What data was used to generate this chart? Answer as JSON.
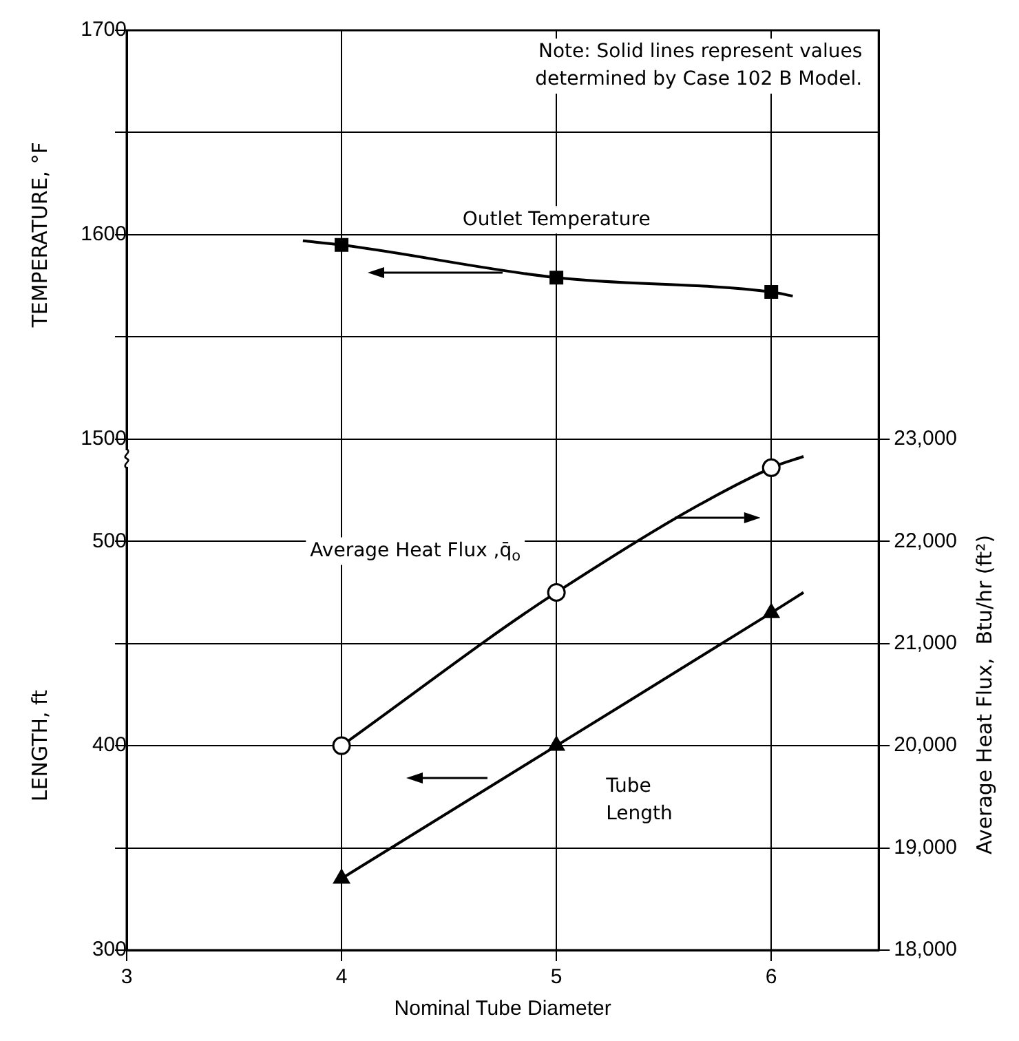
{
  "chart_data": {
    "type": "line",
    "xlabel": "Nominal Tube Diameter",
    "ylabel": "TEMPERATURE, °F",
    "y2label": "Average Heat Flux,  Btu/hr (ft²)",
    "y3label": "LENGTH, ft",
    "annotations": [
      "Note: Solid lines represent values determined by Case 102 B Model."
    ],
    "xlim": [
      3,
      6.5
    ],
    "xticks": [
      3,
      4,
      5,
      6
    ],
    "ylim": [
      1250,
      1700
    ],
    "yticks": [
      1500,
      {
        "value": 1550,
        "label": null
      },
      1600,
      {
        "value": 1650,
        "label": null
      },
      1700
    ],
    "y2lim": [
      18000,
      27000
    ],
    "y2ticks": [
      {
        "value": 18000,
        "label": "18,000"
      },
      {
        "value": 19000,
        "label": "19,000"
      },
      {
        "value": 20000,
        "label": "20,000"
      },
      {
        "value": 21000,
        "label": "21,000"
      },
      {
        "value": 22000,
        "label": "22,000"
      },
      {
        "value": 23000,
        "label": "23,000"
      }
    ],
    "y3lim": [
      300,
      750
    ],
    "y3ticks": [
      300,
      {
        "value": 350,
        "label": null
      },
      400,
      {
        "value": 450,
        "label": null
      },
      500
    ],
    "grid": true,
    "legend": false,
    "line_style": "solid",
    "series": [
      {
        "name": "Outlet Temperature",
        "type": "line",
        "color": "#000000",
        "marker": "none",
        "x": [
          3.82,
          4,
          5,
          6,
          6.1
        ],
        "values": [
          1597,
          1595,
          1579,
          1572,
          1570
        ]
      },
      {
        "type": "scatter",
        "color": "#000000",
        "marker": "square",
        "x": [
          4,
          5,
          6
        ],
        "values": [
          1595,
          1579,
          1572
        ]
      },
      {
        "name": "Average Heat Flux ,q̄$_{o}$",
        "type": "line",
        "axis": "y2",
        "color": "#000000",
        "marker": "none",
        "x": [
          4,
          5,
          6,
          6.15
        ],
        "values": [
          20000,
          21500,
          22720,
          22830
        ]
      },
      {
        "type": "scatter",
        "axis": "y2",
        "color": "#000000",
        "marker": "circle",
        "x": [
          4,
          5,
          6
        ],
        "values": [
          20000,
          21500,
          22720
        ]
      },
      {
        "name": "Tube Length",
        "type": "line",
        "axis": "y3",
        "color": "#000000",
        "marker": "none",
        "x": [
          4,
          5,
          6,
          6.15
        ],
        "values": [
          335,
          400,
          465,
          475
        ]
      },
      {
        "type": "scatter",
        "axis": "y3",
        "color": "#000000",
        "marker": "triangle",
        "x": [
          4,
          5,
          6
        ],
        "values": [
          335,
          400,
          465
        ]
      }
    ]
  }
}
